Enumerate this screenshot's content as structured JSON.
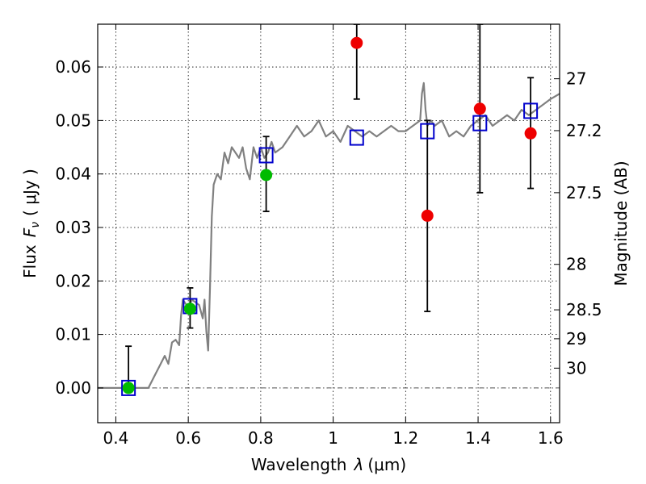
{
  "chart_data": {
    "type": "scatter",
    "xlabel": "Wavelength",
    "xlabel_symbol": "λ",
    "xlabel_unit": "(μm)",
    "ylabel": "Flux",
    "ylabel_symbol": "F",
    "ylabel_subscript": "ν",
    "ylabel_unit": "( μJy )",
    "y2label": "Magnitude (AB)",
    "xlim": [
      0.35,
      1.625
    ],
    "ylim": [
      -0.0065,
      0.068
    ],
    "grid": true,
    "xticks": [
      0.4,
      0.6,
      0.8,
      1.0,
      1.2,
      1.4,
      1.6
    ],
    "xtick_labels": [
      "0.4",
      "0.6",
      "0.8",
      "1",
      "1.2",
      "1.4",
      "1.6"
    ],
    "yticks": [
      0.0,
      0.01,
      0.02,
      0.03,
      0.04,
      0.05,
      0.06
    ],
    "ytick_labels": [
      "0.00",
      "0.01",
      "0.02",
      "0.03",
      "0.04",
      "0.05",
      "0.06"
    ],
    "y2ticks": [
      {
        "label": "27",
        "flux": 0.0578
      },
      {
        "label": "27.2",
        "flux": 0.0481
      },
      {
        "label": "27.5",
        "flux": 0.0365
      },
      {
        "label": "28",
        "flux": 0.0231
      },
      {
        "label": "28.5",
        "flux": 0.0146
      },
      {
        "label": "29",
        "flux": 0.0092
      },
      {
        "label": "30",
        "flux": 0.0037
      }
    ],
    "series": [
      {
        "kind": "line",
        "color": "#808080",
        "x": [
          0.35,
          0.49,
          0.505,
          0.52,
          0.535,
          0.545,
          0.555,
          0.565,
          0.575,
          0.58,
          0.585,
          0.59,
          0.6,
          0.61,
          0.62,
          0.63,
          0.64,
          0.645,
          0.65,
          0.655,
          0.66,
          0.665,
          0.67,
          0.68,
          0.69,
          0.7,
          0.71,
          0.72,
          0.73,
          0.74,
          0.75,
          0.76,
          0.77,
          0.78,
          0.79,
          0.8,
          0.81,
          0.82,
          0.83,
          0.84,
          0.86,
          0.88,
          0.9,
          0.92,
          0.94,
          0.96,
          0.98,
          1.0,
          1.02,
          1.04,
          1.06,
          1.08,
          1.1,
          1.12,
          1.14,
          1.16,
          1.18,
          1.2,
          1.22,
          1.24,
          1.245,
          1.25,
          1.255,
          1.26,
          1.27,
          1.28,
          1.3,
          1.32,
          1.34,
          1.36,
          1.38,
          1.4,
          1.42,
          1.44,
          1.46,
          1.48,
          1.5,
          1.52,
          1.54,
          1.56,
          1.58,
          1.6,
          1.625
        ],
        "y": [
          0.0,
          0.0,
          0.002,
          0.004,
          0.006,
          0.0045,
          0.0085,
          0.009,
          0.008,
          0.0135,
          0.0165,
          0.016,
          0.015,
          0.0165,
          0.016,
          0.0155,
          0.013,
          0.0165,
          0.0105,
          0.007,
          0.019,
          0.032,
          0.038,
          0.04,
          0.039,
          0.044,
          0.042,
          0.045,
          0.044,
          0.043,
          0.045,
          0.041,
          0.039,
          0.045,
          0.043,
          0.045,
          0.043,
          0.044,
          0.046,
          0.044,
          0.045,
          0.047,
          0.049,
          0.047,
          0.048,
          0.05,
          0.047,
          0.048,
          0.046,
          0.049,
          0.048,
          0.047,
          0.048,
          0.047,
          0.048,
          0.049,
          0.048,
          0.048,
          0.049,
          0.05,
          0.055,
          0.057,
          0.052,
          0.049,
          0.05,
          0.049,
          0.05,
          0.047,
          0.048,
          0.047,
          0.049,
          0.05,
          0.051,
          0.049,
          0.05,
          0.051,
          0.05,
          0.052,
          0.051,
          0.052,
          0.053,
          0.054,
          0.055
        ]
      },
      {
        "kind": "open-square",
        "color": "#0000cc",
        "x": [
          0.435,
          0.605,
          0.815,
          1.065,
          1.26,
          1.405,
          1.545
        ],
        "y": [
          0.0,
          0.0153,
          0.0435,
          0.0468,
          0.048,
          0.0495,
          0.0518
        ]
      },
      {
        "kind": "filled-circle",
        "color": "#00bb00",
        "x": [
          0.435,
          0.605,
          0.815
        ],
        "y": [
          0.0,
          0.0148,
          0.0398
        ],
        "err_low": [
          0.0,
          0.0112,
          0.033
        ],
        "err_high": [
          0.0078,
          0.0187,
          0.047
        ]
      },
      {
        "kind": "filled-circle",
        "color": "#ee0000",
        "x": [
          1.065,
          1.26,
          1.405,
          1.545
        ],
        "y": [
          0.0645,
          0.0322,
          0.0522,
          0.0476
        ],
        "err_low": [
          0.054,
          0.0143,
          0.0365,
          0.0373
        ],
        "err_high": [
          0.068,
          0.05,
          0.068,
          0.058
        ]
      }
    ]
  }
}
